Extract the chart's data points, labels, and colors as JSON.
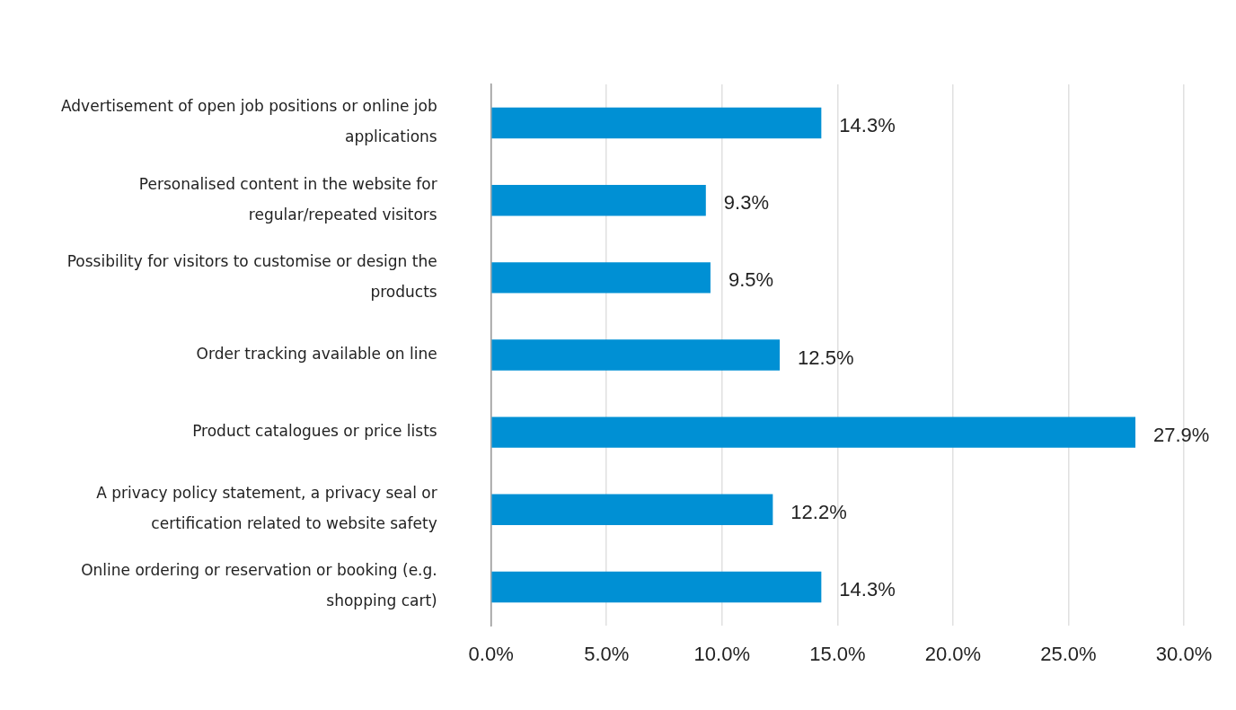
{
  "chart_data": {
    "type": "bar",
    "orientation": "horizontal",
    "categories": [
      "Advertisement of open job positions or online job applications",
      "Personalised content in the website for regular/repeated visitors",
      "Possibility for visitors to customise or design the products",
      "Order tracking available on line",
      "Product catalogues or price lists",
      "A privacy policy statement, a privacy seal or certification related to website safety",
      "Online ordering or reservation or booking (e.g. shopping cart)"
    ],
    "values": [
      14.3,
      9.3,
      9.5,
      12.5,
      27.9,
      12.2,
      14.3
    ],
    "value_labels": [
      "14.3%",
      "9.3%",
      "9.5%",
      "12.5%",
      "27.9%",
      "12.2%",
      "14.3%"
    ],
    "color": "#0090d4",
    "xlim": [
      0,
      30
    ],
    "xticks": [
      {
        "value": 0,
        "label": "0.0%"
      },
      {
        "value": 5,
        "label": "5.0%"
      },
      {
        "value": 10,
        "label": "10.0%"
      },
      {
        "value": 15,
        "label": "15.0%"
      },
      {
        "value": 20,
        "label": "20.0%"
      },
      {
        "value": 25,
        "label": "25.0%"
      },
      {
        "value": 30,
        "label": "30.0%"
      }
    ],
    "grid": "x",
    "legend": false
  }
}
